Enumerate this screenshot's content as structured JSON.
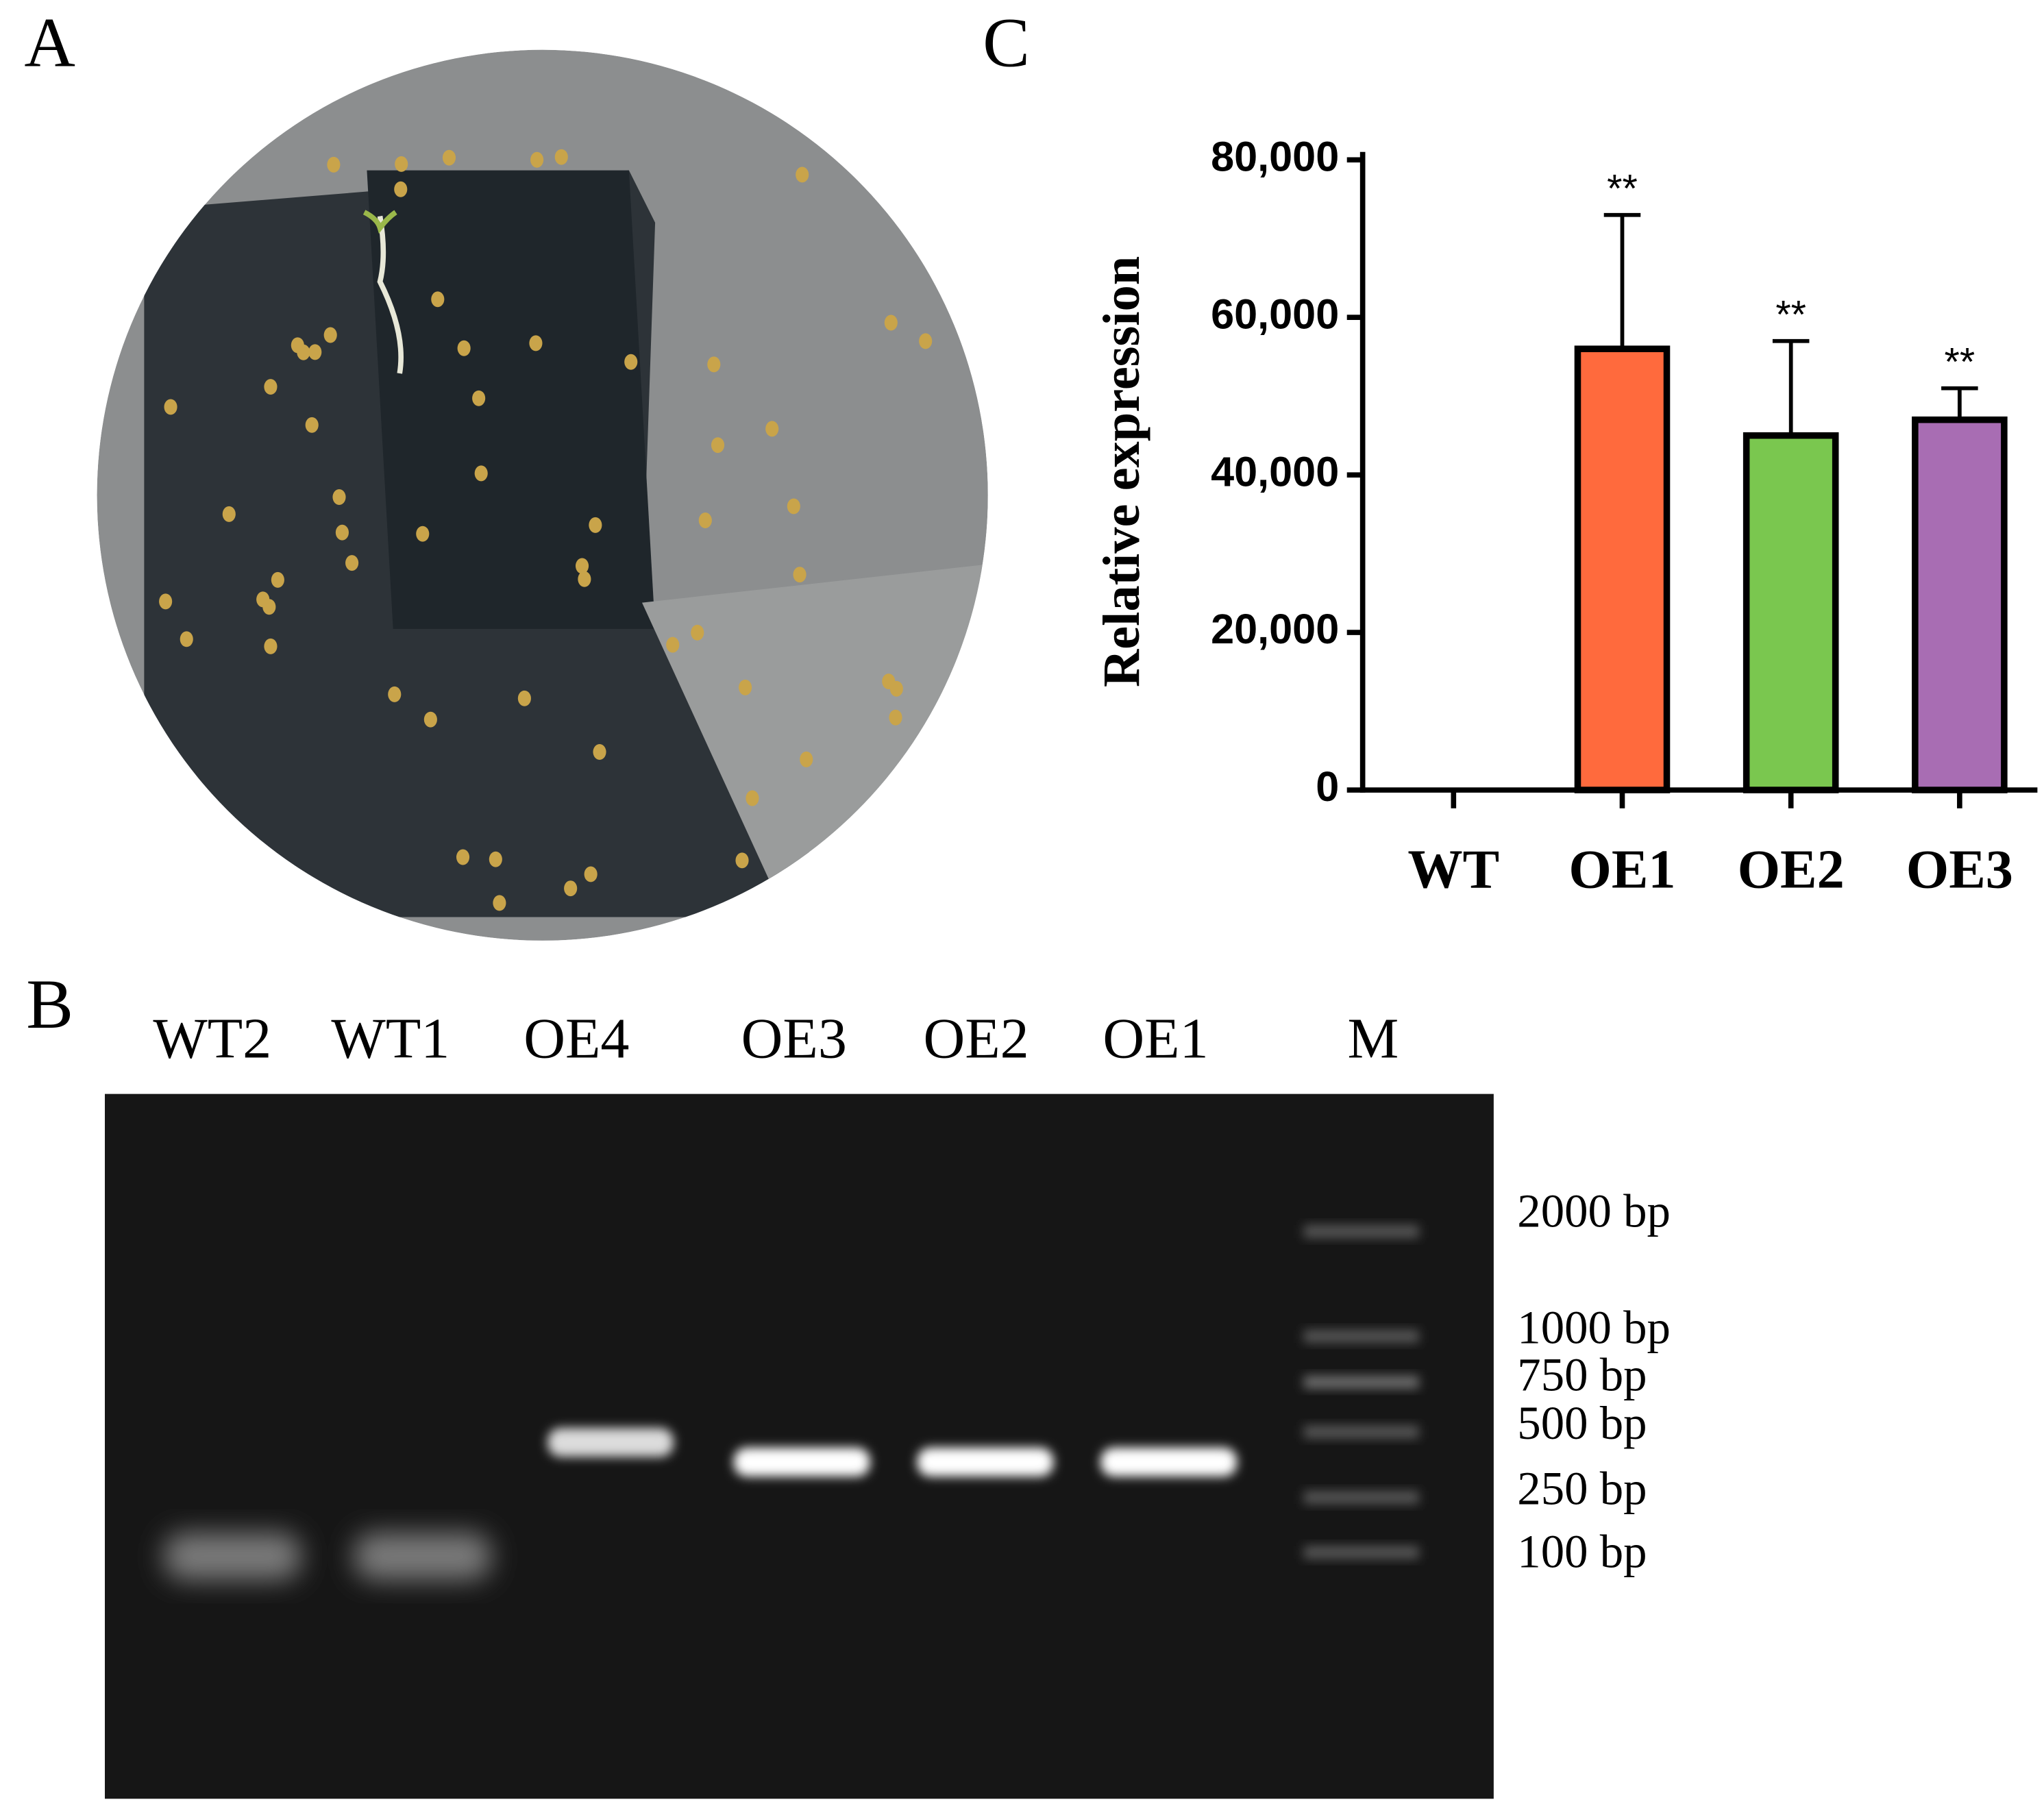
{
  "panels": {
    "A": {
      "label": "A"
    },
    "B": {
      "label": "B",
      "lanes": [
        "WT2",
        "WT1",
        "OE4",
        "OE3",
        "OE2",
        "OE1",
        "M"
      ],
      "markers": [
        "2000 bp",
        "1000 bp",
        "750 bp",
        "500 bp",
        "250 bp",
        "100 bp"
      ]
    },
    "C": {
      "label": "C"
    }
  },
  "chart_data": {
    "type": "bar",
    "y_label": "Relative expression",
    "categories": [
      "WT",
      "OE1",
      "OE2",
      "OE3"
    ],
    "values": [
      0,
      56000,
      45000,
      47000
    ],
    "errors": [
      0,
      17000,
      12000,
      4000
    ],
    "colors": [
      null,
      "#ff6a3d",
      "#7ac74f",
      "#a86db3"
    ],
    "significance": [
      null,
      "**",
      "**",
      "**"
    ],
    "ylim": [
      0,
      80000
    ],
    "yticks": [
      0,
      {
        "value": 20000,
        "label": "20,000"
      },
      {
        "value": 40000,
        "label": "40,000"
      },
      {
        "value": 60000,
        "label": "60,000"
      },
      {
        "value": 80000,
        "label": "80,000"
      }
    ]
  }
}
